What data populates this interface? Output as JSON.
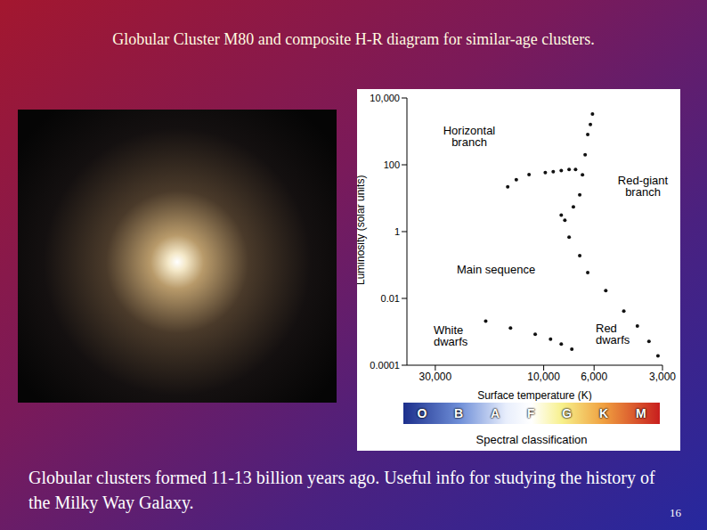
{
  "title": "Globular Cluster M80 and composite H-R diagram for similar-age clusters.",
  "caption": "Globular clusters formed 11-13 billion years ago.  Useful info for studying the history of the Milky Way Galaxy.",
  "page": 16,
  "chart_data": {
    "type": "scatter",
    "x_label": "Surface temperature (K)",
    "y_label": "Luminosity (solar units)",
    "x": [
      14400,
      13200,
      11600,
      9840,
      9080,
      8370,
      7730,
      7240,
      8370,
      8070,
      7730,
      6940,
      6400,
      5330,
      4440,
      3870,
      3440,
      3140,
      7400,
      6940,
      6750,
      6570,
      6400,
      6230,
      6100,
      18000,
      14000,
      10900,
      9330,
      8370,
      7520
    ],
    "values": [
      22,
      36,
      51,
      58,
      62,
      67,
      72,
      72,
      3.1,
      2.2,
      0.68,
      0.19,
      0.059,
      0.017,
      0.0042,
      0.0015,
      0.00052,
      0.00019,
      5.5,
      12.6,
      50,
      200,
      810,
      1600,
      3300,
      0.0021,
      0.0013,
      0.00085,
      0.0006,
      0.00043,
      0.0003
    ],
    "color": "#111111",
    "marker": "dot",
    "log": true,
    "grid": false,
    "xlim": [
      40000,
      3000
    ],
    "xticks": [
      {
        "value": 30000,
        "label": "30,000"
      },
      {
        "value": 10000,
        "label": "10,000"
      },
      {
        "value": 6000,
        "label": "6,000"
      },
      {
        "value": 3000,
        "label": "3,000"
      }
    ],
    "ylim": [
      0.0001,
      10000
    ],
    "yticks": [
      0.0001,
      0.01,
      1,
      100,
      {
        "value": 10000,
        "label": "10,000"
      }
    ],
    "annotations": [
      "Horizontal branch",
      "Red-giant branch",
      "Main sequence",
      "White dwarfs",
      "Red dwarfs"
    ],
    "spectral_label": "Spectral classification",
    "spectral_classes": [
      "O",
      "B",
      "A",
      "F",
      "G",
      "K",
      "M"
    ]
  }
}
